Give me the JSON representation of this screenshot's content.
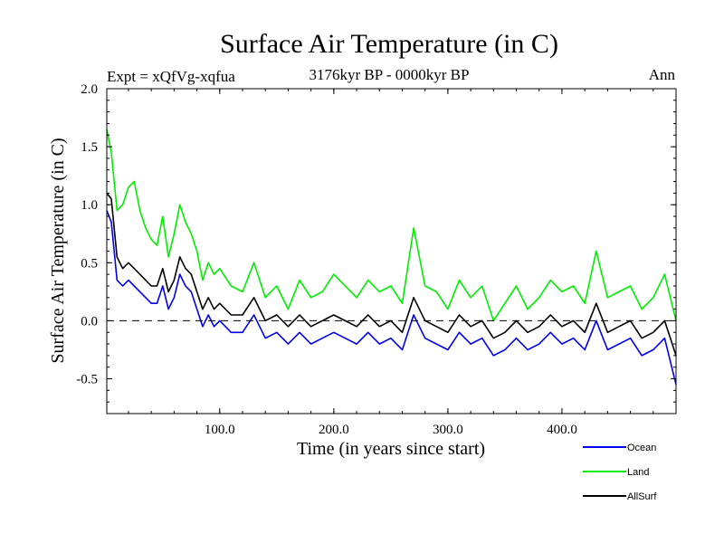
{
  "chart_data": {
    "type": "line",
    "title": "Surface Air Temperature (in C)",
    "left_label": "Expt = xQfVg-xqfua",
    "center_label": "3176kyr BP - 0000kyr BP",
    "right_label": "Ann",
    "xlabel": "Time (in years since start)",
    "ylabel": "Surface Air Temperature (in C)",
    "xlim": [
      1,
      500
    ],
    "ylim": [
      -0.8,
      2.0
    ],
    "xticks": [
      100,
      200,
      300,
      400
    ],
    "xtick_labels": [
      "100.0",
      "200.0",
      "300.0",
      "400.0"
    ],
    "yticks": [
      -0.5,
      0.0,
      0.5,
      1.0,
      1.5,
      2.0
    ],
    "ytick_labels": [
      "-0.5",
      "0.0",
      "0.5",
      "1.0",
      "1.5",
      "2.0"
    ],
    "zero_line": 0.0,
    "series": [
      {
        "name": "Land",
        "color": "#00ee00",
        "x": [
          1,
          5,
          10,
          15,
          20,
          25,
          30,
          35,
          40,
          45,
          50,
          55,
          60,
          65,
          70,
          75,
          80,
          85,
          90,
          95,
          100,
          110,
          120,
          130,
          140,
          150,
          160,
          170,
          180,
          190,
          200,
          210,
          220,
          230,
          240,
          250,
          260,
          270,
          280,
          290,
          300,
          310,
          320,
          330,
          340,
          350,
          360,
          370,
          380,
          390,
          400,
          410,
          420,
          430,
          440,
          450,
          460,
          470,
          480,
          490,
          500
        ],
        "values": [
          1.65,
          1.45,
          0.95,
          1.0,
          1.15,
          1.2,
          0.95,
          0.8,
          0.7,
          0.65,
          0.9,
          0.55,
          0.75,
          1.0,
          0.85,
          0.75,
          0.6,
          0.35,
          0.5,
          0.4,
          0.45,
          0.3,
          0.25,
          0.5,
          0.2,
          0.3,
          0.1,
          0.35,
          0.2,
          0.25,
          0.4,
          0.3,
          0.2,
          0.35,
          0.25,
          0.3,
          0.15,
          0.8,
          0.3,
          0.25,
          0.1,
          0.35,
          0.2,
          0.3,
          0.0,
          0.15,
          0.3,
          0.1,
          0.2,
          0.35,
          0.25,
          0.3,
          0.15,
          0.6,
          0.2,
          0.25,
          0.3,
          0.1,
          0.2,
          0.4,
          0.0
        ]
      },
      {
        "name": "AllSurf",
        "color": "#000000",
        "x": [
          1,
          5,
          10,
          15,
          20,
          25,
          30,
          35,
          40,
          45,
          50,
          55,
          60,
          65,
          70,
          75,
          80,
          85,
          90,
          95,
          100,
          110,
          120,
          130,
          140,
          150,
          160,
          170,
          180,
          190,
          200,
          210,
          220,
          230,
          240,
          250,
          260,
          270,
          280,
          290,
          300,
          310,
          320,
          330,
          340,
          350,
          360,
          370,
          380,
          390,
          400,
          410,
          420,
          430,
          440,
          450,
          460,
          470,
          480,
          490,
          500
        ],
        "values": [
          1.1,
          1.05,
          0.55,
          0.45,
          0.5,
          0.45,
          0.4,
          0.35,
          0.3,
          0.3,
          0.45,
          0.25,
          0.35,
          0.55,
          0.45,
          0.4,
          0.25,
          0.1,
          0.2,
          0.1,
          0.15,
          0.05,
          0.05,
          0.2,
          0.0,
          0.05,
          -0.05,
          0.05,
          -0.05,
          0.0,
          0.05,
          0.0,
          -0.05,
          0.05,
          -0.05,
          0.0,
          -0.1,
          0.2,
          0.0,
          -0.05,
          -0.1,
          0.05,
          -0.05,
          0.0,
          -0.15,
          -0.1,
          0.0,
          -0.1,
          -0.05,
          0.05,
          -0.05,
          0.0,
          -0.1,
          0.15,
          -0.1,
          -0.05,
          0.0,
          -0.15,
          -0.1,
          0.0,
          -0.3
        ]
      },
      {
        "name": "Ocean",
        "color": "#0000ee",
        "x": [
          1,
          5,
          10,
          15,
          20,
          25,
          30,
          35,
          40,
          45,
          50,
          55,
          60,
          65,
          70,
          75,
          80,
          85,
          90,
          95,
          100,
          110,
          120,
          130,
          140,
          150,
          160,
          170,
          180,
          190,
          200,
          210,
          220,
          230,
          240,
          250,
          260,
          270,
          280,
          290,
          300,
          310,
          320,
          330,
          340,
          350,
          360,
          370,
          380,
          390,
          400,
          410,
          420,
          430,
          440,
          450,
          460,
          470,
          480,
          490,
          500
        ],
        "values": [
          0.95,
          0.85,
          0.35,
          0.3,
          0.35,
          0.3,
          0.25,
          0.2,
          0.15,
          0.15,
          0.3,
          0.1,
          0.2,
          0.4,
          0.3,
          0.25,
          0.1,
          -0.05,
          0.05,
          -0.05,
          0.0,
          -0.1,
          -0.1,
          0.05,
          -0.15,
          -0.1,
          -0.2,
          -0.1,
          -0.2,
          -0.15,
          -0.1,
          -0.15,
          -0.2,
          -0.1,
          -0.2,
          -0.15,
          -0.25,
          0.05,
          -0.15,
          -0.2,
          -0.25,
          -0.1,
          -0.2,
          -0.15,
          -0.3,
          -0.25,
          -0.15,
          -0.25,
          -0.2,
          -0.1,
          -0.2,
          -0.15,
          -0.25,
          0.0,
          -0.25,
          -0.2,
          -0.15,
          -0.3,
          -0.25,
          -0.15,
          -0.55
        ]
      }
    ],
    "legend": [
      {
        "label": "Ocean",
        "color": "#0000ee"
      },
      {
        "label": "Land",
        "color": "#00ee00"
      },
      {
        "label": "AllSurf",
        "color": "#000000"
      }
    ]
  }
}
